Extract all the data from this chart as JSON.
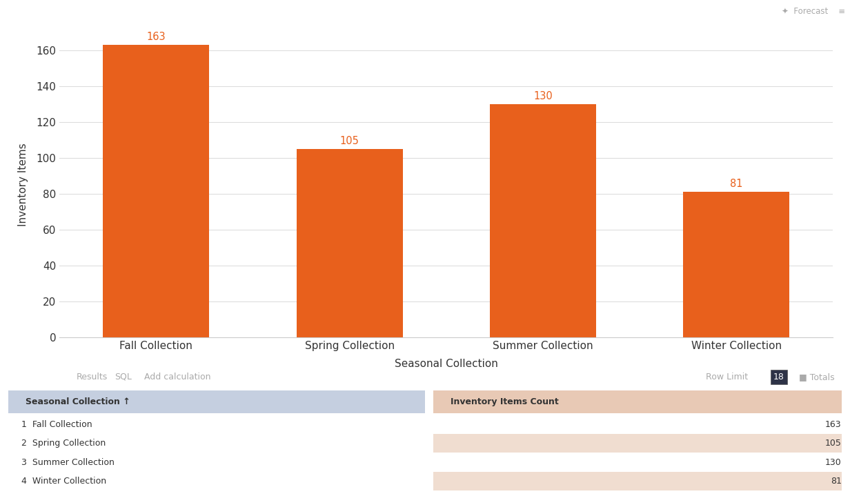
{
  "categories": [
    "Fall Collection",
    "Spring Collection",
    "Summer Collection",
    "Winter Collection"
  ],
  "values": [
    163,
    105,
    130,
    81
  ],
  "bar_color": "#e8601c",
  "label_color": "#e8601c",
  "xlabel": "Seasonal Collection",
  "ylabel": "Inventory Items",
  "ylim": [
    0,
    170
  ],
  "yticks": [
    0,
    20,
    40,
    60,
    80,
    100,
    120,
    140,
    160
  ],
  "background_color": "#ffffff",
  "plot_bg_color": "#ffffff",
  "grid_color": "#dddddd",
  "tick_label_fontsize": 11,
  "axis_label_fontsize": 11,
  "value_label_fontsize": 10.5,
  "bar_width": 0.55,
  "top_bar_color": "#1a1a2e",
  "bottom_panel_bg": "#1e2130",
  "table_header_left_bg": "#c5cfe0",
  "table_header_right_bg": "#e8c9b5"
}
